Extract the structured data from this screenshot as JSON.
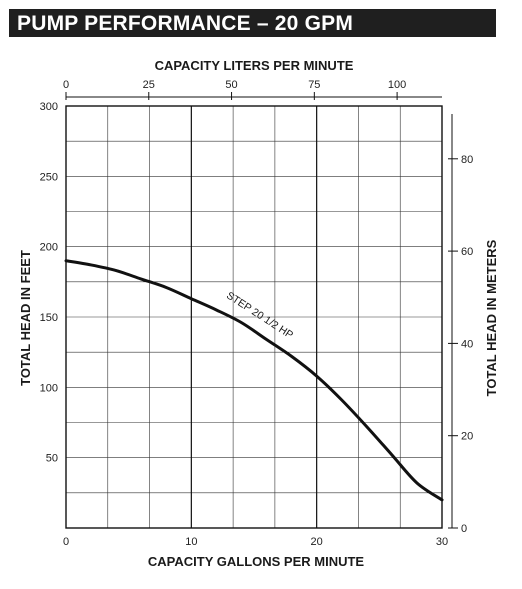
{
  "page_title": "PUMP PERFORMANCE – 20 GPM",
  "chart_data": {
    "type": "line",
    "title": "PUMP PERFORMANCE – 20 GPM",
    "xlabel": "CAPACITY GALLONS PER MINUTE",
    "ylabel": "TOTAL HEAD IN FEET",
    "x2label": "CAPACITY LITERS PER MINUTE",
    "y2label": "TOTAL HEAD IN METERS",
    "xlim": [
      0,
      30
    ],
    "ylim": [
      0,
      300
    ],
    "x2lim": [
      0,
      113.56
    ],
    "y2lim": [
      0,
      91.44
    ],
    "grid": true,
    "x_ticks": [
      "0",
      "10",
      "20",
      "30"
    ],
    "y_ticks": [
      "50",
      "100",
      "150",
      "200",
      "250",
      "300"
    ],
    "x2_ticks": [
      "0",
      "25",
      "50",
      "75",
      "100"
    ],
    "y2_ticks": [
      "0",
      "20",
      "40",
      "60",
      "80"
    ],
    "series": [
      {
        "name": "STEP 20  1/2 HP",
        "x": [
          0,
          2,
          4,
          6,
          8,
          10,
          12,
          14,
          16,
          18,
          20,
          22,
          24,
          26,
          28,
          30
        ],
        "y": [
          190,
          187,
          183,
          177,
          171,
          163,
          155,
          146,
          134,
          122,
          108,
          91,
          72,
          52,
          32,
          20
        ]
      }
    ],
    "colors": {
      "line": "#111111",
      "grid": "#333333",
      "banner": "#1f1f1f"
    }
  }
}
